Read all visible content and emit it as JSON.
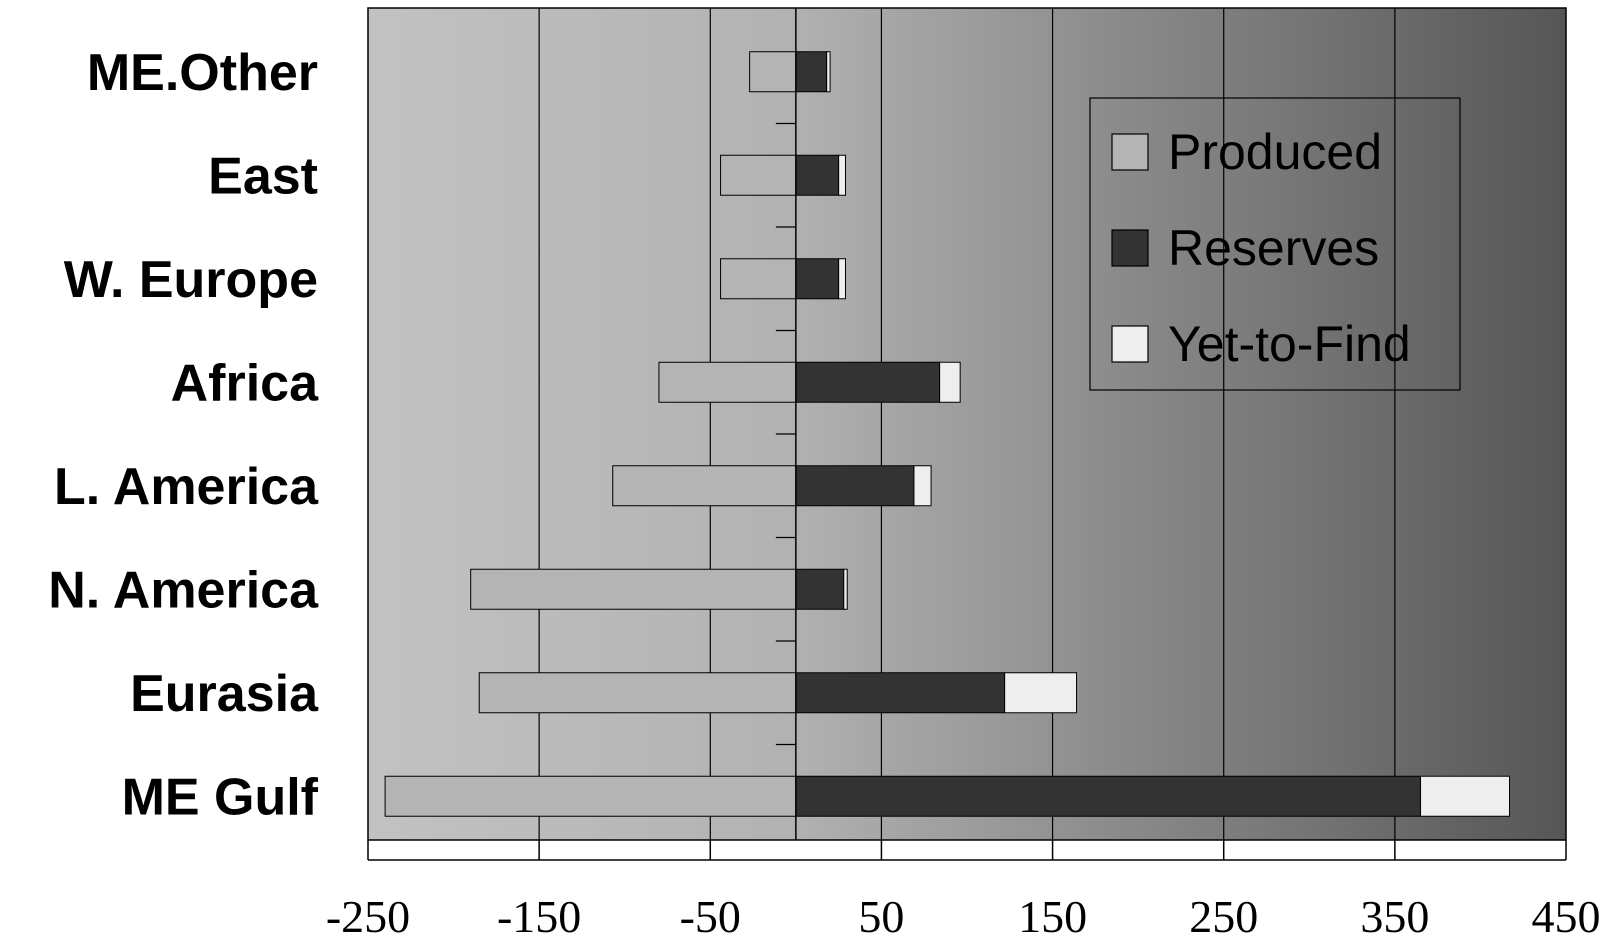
{
  "chart_data": {
    "type": "bar",
    "orientation": "horizontal",
    "stacked": true,
    "categories": [
      "ME.Other",
      "East",
      "W. Europe",
      "Africa",
      "L. America",
      "N. America",
      "Eurasia",
      "ME Gulf"
    ],
    "series": [
      {
        "name": "Produced",
        "values": [
          -27,
          -44,
          -44,
          -80,
          -107,
          -190,
          -185,
          -240
        ],
        "color": "#b4b4b4"
      },
      {
        "name": "Reserves",
        "values": [
          18,
          25,
          25,
          84,
          69,
          28,
          122,
          365
        ],
        "color": "#333333"
      },
      {
        "name": "Yet-to-Find",
        "values": [
          2,
          4,
          4,
          12,
          10,
          2,
          42,
          52
        ],
        "color": "#eeeeee"
      }
    ],
    "xticks": [
      "-250",
      "-150",
      "-50",
      "50",
      "150",
      "250",
      "350",
      "450"
    ],
    "xlim": [
      -250,
      450
    ],
    "title": "",
    "xlabel": "",
    "ylabel": "",
    "grid": true,
    "legend_position": "top-right",
    "background": "horizontal gradient light-to-dark gray"
  }
}
